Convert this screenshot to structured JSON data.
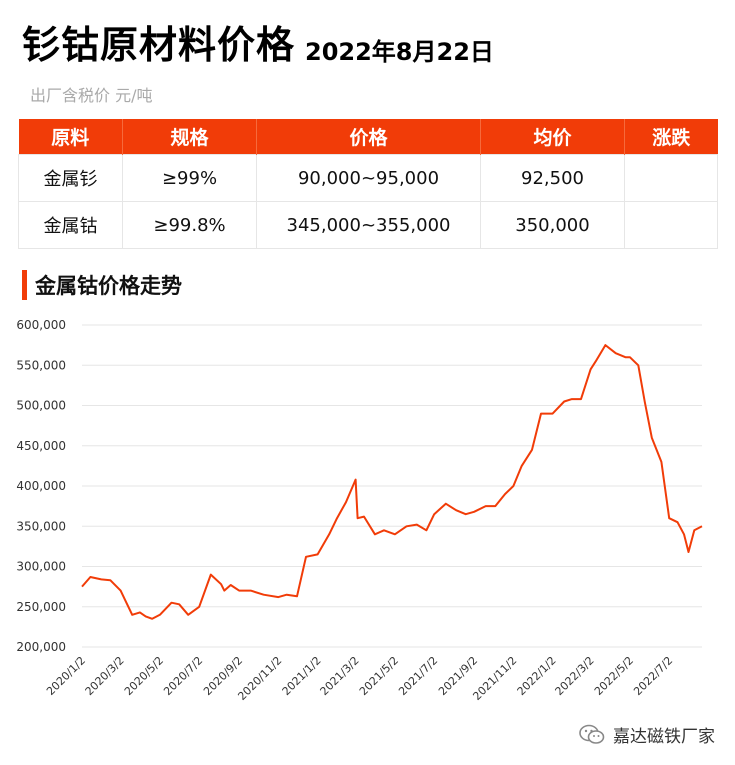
{
  "header": {
    "title": "钐钴原材料价格",
    "date": "2022年8月22日",
    "subtitle": "出厂含税价 元/吨"
  },
  "table": {
    "columns": [
      "原料",
      "规格",
      "价格",
      "均价",
      "涨跌"
    ],
    "rows": [
      [
        "金属钐",
        "≥99%",
        "90,000~95,000",
        "92,500",
        ""
      ],
      [
        "金属钴",
        "≥99.8%",
        "345,000~355,000",
        "350,000",
        ""
      ]
    ]
  },
  "section": {
    "title": "金属钴价格走势"
  },
  "colors": {
    "accent": "#f13c08",
    "line": "#f13c08",
    "grid": "#e6e6e6"
  },
  "watermark": {
    "text": "嘉达磁铁厂家",
    "icon": "wechat-icon"
  },
  "chart_data": {
    "type": "line",
    "title": "",
    "xlabel": "",
    "ylabel": "",
    "ylim": [
      200000,
      600000
    ],
    "yticks": [
      "600,000",
      "550,000",
      "500,000",
      "450,000",
      "400,000",
      "350,000",
      "300,000",
      "250,000",
      "200,000"
    ],
    "yticks_values": [
      600000,
      550000,
      500000,
      450000,
      400000,
      350000,
      300000,
      250000,
      200000
    ],
    "xticks": [
      "2020/1/2",
      "2020/3/2",
      "2020/5/2",
      "2020/7/2",
      "2020/9/2",
      "2020/11/2",
      "2021/1/2",
      "2021/3/2",
      "2021/5/2",
      "2021/7/2",
      "2021/9/2",
      "2021/11/2",
      "2022/1/2",
      "2022/3/2",
      "2022/5/2",
      "2022/7/2"
    ],
    "grid": true,
    "series": [
      {
        "x": [
          "2020/1/2",
          "2020/1/15",
          "2020/2/1",
          "2020/2/15",
          "2020/3/2",
          "2020/3/20",
          "2020/4/1",
          "2020/4/10",
          "2020/4/20",
          "2020/5/2",
          "2020/5/20",
          "2020/6/1",
          "2020/6/15",
          "2020/7/2",
          "2020/7/20",
          "2020/8/5",
          "2020/8/10",
          "2020/8/20",
          "2020/9/2",
          "2020/9/20",
          "2020/10/10",
          "2020/11/2",
          "2020/11/15",
          "2020/12/1",
          "2020/12/15",
          "2021/1/2",
          "2021/1/20",
          "2021/2/1",
          "2021/2/15",
          "2021/3/2",
          "2021/3/5",
          "2021/3/15",
          "2021/4/1",
          "2021/4/15",
          "2021/5/2",
          "2021/5/20",
          "2021/6/5",
          "2021/6/20",
          "2021/7/2",
          "2021/7/20",
          "2021/8/5",
          "2021/8/20",
          "2021/9/2",
          "2021/9/20",
          "2021/10/5",
          "2021/10/20",
          "2021/11/2",
          "2021/11/15",
          "2021/12/1",
          "2021/12/15",
          "2022/1/2",
          "2022/1/20",
          "2022/2/1",
          "2022/2/15",
          "2022/3/2",
          "2022/3/10",
          "2022/3/25",
          "2022/4/10",
          "2022/4/25",
          "2022/5/2",
          "2022/5/15",
          "2022/5/25",
          "2022/6/5",
          "2022/6/20",
          "2022/7/2",
          "2022/7/15",
          "2022/7/25",
          "2022/8/1",
          "2022/8/10",
          "2022/8/22"
        ],
        "y": [
          275000,
          287000,
          284000,
          283000,
          270000,
          240000,
          243000,
          238000,
          235000,
          240000,
          255000,
          253000,
          240000,
          250000,
          290000,
          278000,
          270000,
          277000,
          270000,
          270000,
          265000,
          262000,
          265000,
          263000,
          312000,
          315000,
          340000,
          360000,
          380000,
          408000,
          360000,
          362000,
          340000,
          345000,
          340000,
          350000,
          352000,
          345000,
          365000,
          378000,
          370000,
          365000,
          368000,
          375000,
          375000,
          390000,
          400000,
          425000,
          445000,
          490000,
          490000,
          505000,
          508000,
          508000,
          545000,
          555000,
          575000,
          565000,
          560000,
          560000,
          550000,
          505000,
          460000,
          430000,
          360000,
          355000,
          340000,
          318000,
          345000,
          350000
        ]
      }
    ]
  }
}
